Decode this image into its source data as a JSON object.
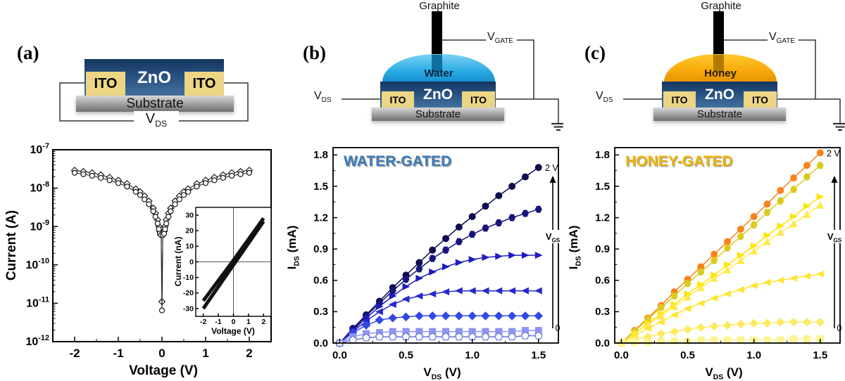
{
  "figure": {
    "background": "#ffffff",
    "accent_water": "#3c7ab8",
    "accent_honey": "#f0b400"
  },
  "panels": {
    "a": {
      "label": "(a)",
      "schematic": {
        "zno": "ZnO",
        "ito_left": "ITO",
        "ito_right": "ITO",
        "substrate": "Substrate",
        "vds": {
          "main": "V",
          "sub": "DS"
        }
      }
    },
    "b": {
      "label": "(b)",
      "schematic": {
        "graphite": "Graphite",
        "liquid": "Water",
        "zno": "ZnO",
        "ito_left": "ITO",
        "ito_right": "ITO",
        "substrate": "Substrate",
        "vds": {
          "main": "V",
          "sub": "DS"
        },
        "vgate": {
          "main": "V",
          "sub": "GATE"
        }
      }
    },
    "c": {
      "label": "(c)",
      "schematic": {
        "graphite": "Graphite",
        "liquid": "Honey",
        "zno": "ZnO",
        "ito_left": "ITO",
        "ito_right": "ITO",
        "substrate": "Substrate",
        "vds": {
          "main": "V",
          "sub": "DS"
        },
        "vgate": {
          "main": "V",
          "sub": "GATE"
        }
      }
    }
  },
  "chart_data": {
    "panel_a": {
      "type": "scatter",
      "xlabel": "Voltage (V)",
      "ylabel": "Current (A)",
      "xlim": [
        -2.5,
        2.5
      ],
      "xticks": [
        "-2",
        "-1",
        "0",
        "1",
        "2"
      ],
      "ylog": true,
      "yexp_ticks": [
        -7,
        -8,
        -9,
        -10,
        -11,
        -12
      ],
      "series": [
        {
          "name": "sweep-1-diamonds",
          "marker": "diamond",
          "open": true,
          "color": "#1a1a1a",
          "x": [
            -2,
            -1.8,
            -1.6,
            -1.4,
            -1.2,
            -1,
            -0.8,
            -0.6,
            -0.5,
            -0.4,
            -0.3,
            -0.2,
            -0.15,
            -0.1,
            -0.07,
            -0.05,
            -0.02,
            0,
            0.02,
            0.05,
            0.07,
            0.1,
            0.15,
            0.2,
            0.3,
            0.4,
            0.5,
            0.6,
            0.8,
            1,
            1.2,
            1.4,
            1.6,
            1.8,
            2
          ],
          "y": [
            2.9e-08,
            2.7e-08,
            2.5e-08,
            2.2e-08,
            1.9e-08,
            1.6e-08,
            1.3e-08,
            9.5e-09,
            8e-09,
            6.2e-09,
            4.6e-09,
            3e-09,
            2.2e-09,
            1.5e-09,
            1e-09,
            7.5e-10,
            7e-10,
            1.1e-11,
            7e-10,
            7.5e-10,
            1e-09,
            1.5e-09,
            2.2e-09,
            3e-09,
            4.6e-09,
            6.2e-09,
            8e-09,
            9.5e-09,
            1.3e-08,
            1.6e-08,
            1.9e-08,
            2.2e-08,
            2.5e-08,
            2.7e-08,
            2.9e-08
          ]
        },
        {
          "name": "sweep-2-circles",
          "marker": "circle",
          "open": true,
          "color": "#1a1a1a",
          "x": [
            -2,
            -1.8,
            -1.6,
            -1.4,
            -1.2,
            -1,
            -0.8,
            -0.6,
            -0.5,
            -0.4,
            -0.3,
            -0.2,
            -0.15,
            -0.1,
            -0.07,
            -0.05,
            -0.02,
            0,
            0.02,
            0.05,
            0.07,
            0.1,
            0.15,
            0.2,
            0.3,
            0.4,
            0.5,
            0.6,
            0.8,
            1,
            1.2,
            1.4,
            1.6,
            1.8,
            2
          ],
          "y": [
            2.5e-08,
            2.3e-08,
            2.1e-08,
            1.85e-08,
            1.6e-08,
            1.35e-08,
            1.1e-08,
            8e-09,
            6.6e-09,
            5.1e-09,
            3.8e-09,
            2.5e-09,
            1.8e-09,
            1.2e-09,
            8.5e-10,
            6.5e-10,
            6e-10,
            6.5e-12,
            6e-10,
            6.5e-10,
            8.5e-10,
            1.2e-09,
            1.8e-09,
            2.5e-09,
            3.8e-09,
            5.1e-09,
            6.6e-09,
            8e-09,
            1.1e-08,
            1.35e-08,
            1.6e-08,
            1.85e-08,
            2.1e-08,
            2.3e-08,
            2.5e-08
          ]
        }
      ]
    },
    "panel_a_inset": {
      "type": "line",
      "xlabel": "Voltage (V)",
      "ylabel": "Current (nA)",
      "xlim": [
        -2.5,
        2.5
      ],
      "ylim": [
        -35,
        35
      ],
      "xticks": [
        "-2",
        "-1",
        "0",
        "1",
        "2"
      ],
      "yticks": [
        "-30",
        "-20",
        "-10",
        "0",
        "10",
        "20",
        "30"
      ],
      "zerolines": true,
      "series": [
        {
          "name": "sweep-up",
          "color": "#111111",
          "width": 5,
          "x": [
            -2,
            0,
            2
          ],
          "y": [
            -30,
            -2,
            26
          ]
        },
        {
          "name": "sweep-down",
          "color": "#111111",
          "width": 5,
          "x": [
            -2,
            0,
            2
          ],
          "y": [
            -25,
            1,
            28
          ]
        }
      ]
    },
    "panel_b": {
      "type": "scatter-line",
      "title": "WATER-GATED",
      "title_color": "#3c7ab8",
      "xlabel_parts": [
        {
          "t": "V"
        },
        {
          "s": "DS"
        },
        {
          "t": " (V)"
        }
      ],
      "ylabel_parts": [
        {
          "t": "I"
        },
        {
          "s": "DS"
        },
        {
          "t": " (mA)"
        }
      ],
      "xlim": [
        0,
        1.6
      ],
      "ylim": [
        0,
        1.9
      ],
      "xticks": [
        "0.0",
        "0.5",
        "1.0",
        "1.5"
      ],
      "yticks": [
        "0.0",
        "0.3",
        "0.6",
        "0.9",
        "1.2",
        "1.5",
        "1.8"
      ],
      "gate_top_label": "2 V",
      "gate_bottom_label": "0",
      "gate_axis_label": [
        {
          "t": "V"
        },
        {
          "s": "GS"
        }
      ],
      "x": [
        0,
        0.1,
        0.2,
        0.3,
        0.4,
        0.5,
        0.6,
        0.7,
        0.8,
        0.9,
        1,
        1.1,
        1.2,
        1.3,
        1.4,
        1.5
      ],
      "series": [
        {
          "name": "curve-1",
          "gate": "2 V",
          "marker": "circle",
          "color": "#0b0b4d",
          "values": [
            0,
            0.14,
            0.27,
            0.4,
            0.53,
            0.65,
            0.77,
            0.89,
            1.0,
            1.11,
            1.21,
            1.31,
            1.41,
            1.5,
            1.59,
            1.68
          ]
        },
        {
          "name": "curve-2",
          "marker": "hexagon",
          "color": "#15157a",
          "values": [
            0,
            0.13,
            0.26,
            0.38,
            0.5,
            0.61,
            0.71,
            0.81,
            0.89,
            0.97,
            1.04,
            1.1,
            1.15,
            1.2,
            1.24,
            1.28
          ]
        },
        {
          "name": "curve-3",
          "marker": "triangle-right",
          "color": "#1d1dba",
          "values": [
            0,
            0.12,
            0.24,
            0.35,
            0.45,
            0.54,
            0.62,
            0.68,
            0.73,
            0.77,
            0.8,
            0.82,
            0.83,
            0.84,
            0.84,
            0.84
          ]
        },
        {
          "name": "curve-4",
          "marker": "triangle-left",
          "color": "#2626cf",
          "values": [
            0,
            0.11,
            0.21,
            0.3,
            0.37,
            0.42,
            0.45,
            0.47,
            0.49,
            0.5,
            0.5,
            0.5,
            0.5,
            0.5,
            0.5,
            0.5
          ]
        },
        {
          "name": "curve-5",
          "marker": "diamond",
          "color": "#3348e3",
          "values": [
            0,
            0.1,
            0.17,
            0.22,
            0.24,
            0.25,
            0.26,
            0.26,
            0.26,
            0.26,
            0.26,
            0.26,
            0.26,
            0.26,
            0.26,
            0.26
          ]
        },
        {
          "name": "curve-6",
          "marker": "square",
          "color": "#8d95ef",
          "values": [
            0,
            0.06,
            0.09,
            0.1,
            0.11,
            0.11,
            0.11,
            0.11,
            0.11,
            0.11,
            0.11,
            0.11,
            0.11,
            0.11,
            0.12,
            0.12
          ]
        },
        {
          "name": "curve-7",
          "gate": "0",
          "marker": "pentagon",
          "open": true,
          "color": "#6a74e0",
          "values": [
            0,
            0.03,
            0.05,
            0.06,
            0.06,
            0.06,
            0.06,
            0.06,
            0.06,
            0.06,
            0.06,
            0.06,
            0.06,
            0.06,
            0.07,
            0.07
          ]
        }
      ]
    },
    "panel_c": {
      "type": "scatter-line",
      "title": "HONEY-GATED",
      "title_color": "#f0b400",
      "xlabel_parts": [
        {
          "t": "V"
        },
        {
          "s": "DS"
        },
        {
          "t": " (V)"
        }
      ],
      "ylabel_parts": [
        {
          "t": "I"
        },
        {
          "s": "DS"
        },
        {
          "t": " (mA)"
        }
      ],
      "xlim": [
        0,
        1.6
      ],
      "ylim": [
        0,
        1.9
      ],
      "xticks": [
        "0.0",
        "0.5",
        "1.0",
        "1.5"
      ],
      "yticks": [
        "0.0",
        "0.3",
        "0.6",
        "0.9",
        "1.2",
        "1.5",
        "1.8"
      ],
      "gate_top_label": "2 V",
      "gate_bottom_label": "0",
      "gate_axis_label": [
        {
          "t": "V"
        },
        {
          "s": "GS"
        }
      ],
      "x": [
        0,
        0.1,
        0.2,
        0.3,
        0.4,
        0.5,
        0.6,
        0.7,
        0.8,
        0.9,
        1,
        1.1,
        1.2,
        1.3,
        1.4,
        1.5
      ],
      "series": [
        {
          "name": "curve-1",
          "gate": "2 V",
          "marker": "circle",
          "color": "#f8821c",
          "values": [
            0,
            0.12,
            0.24,
            0.36,
            0.49,
            0.61,
            0.73,
            0.85,
            0.97,
            1.09,
            1.21,
            1.33,
            1.46,
            1.58,
            1.7,
            1.82
          ]
        },
        {
          "name": "curve-2",
          "marker": "hexagon",
          "color": "#d9cc1b",
          "values": [
            0,
            0.11,
            0.23,
            0.34,
            0.45,
            0.57,
            0.68,
            0.79,
            0.91,
            1.02,
            1.13,
            1.25,
            1.36,
            1.47,
            1.59,
            1.7
          ]
        },
        {
          "name": "curve-3",
          "marker": "triangle-right",
          "color": "#ffe400",
          "values": [
            0,
            0.09,
            0.19,
            0.28,
            0.37,
            0.47,
            0.56,
            0.65,
            0.75,
            0.84,
            0.93,
            1.03,
            1.12,
            1.21,
            1.31,
            1.4
          ]
        },
        {
          "name": "curve-4",
          "marker": "triangle-up",
          "color": "#ffe94a",
          "values": [
            0,
            0.09,
            0.18,
            0.26,
            0.35,
            0.44,
            0.53,
            0.62,
            0.7,
            0.79,
            0.88,
            0.97,
            1.06,
            1.14,
            1.23,
            1.32
          ]
        },
        {
          "name": "curve-5",
          "marker": "triangle-left",
          "color": "#ffe433",
          "values": [
            0,
            0.07,
            0.14,
            0.2,
            0.27,
            0.33,
            0.38,
            0.43,
            0.47,
            0.51,
            0.55,
            0.58,
            0.6,
            0.62,
            0.64,
            0.66
          ]
        },
        {
          "name": "curve-6",
          "marker": "diamond",
          "color": "#ffe95e",
          "values": [
            0,
            0.03,
            0.06,
            0.09,
            0.11,
            0.13,
            0.15,
            0.16,
            0.17,
            0.18,
            0.19,
            0.19,
            0.2,
            0.2,
            0.2,
            0.2
          ]
        },
        {
          "name": "curve-7",
          "gate": "0",
          "marker": "square",
          "color": "#fbf493",
          "values": [
            0,
            0.01,
            0.01,
            0.02,
            0.02,
            0.02,
            0.03,
            0.03,
            0.03,
            0.03,
            0.03,
            0.03,
            0.03,
            0.04,
            0.04,
            0.04
          ]
        }
      ]
    }
  }
}
